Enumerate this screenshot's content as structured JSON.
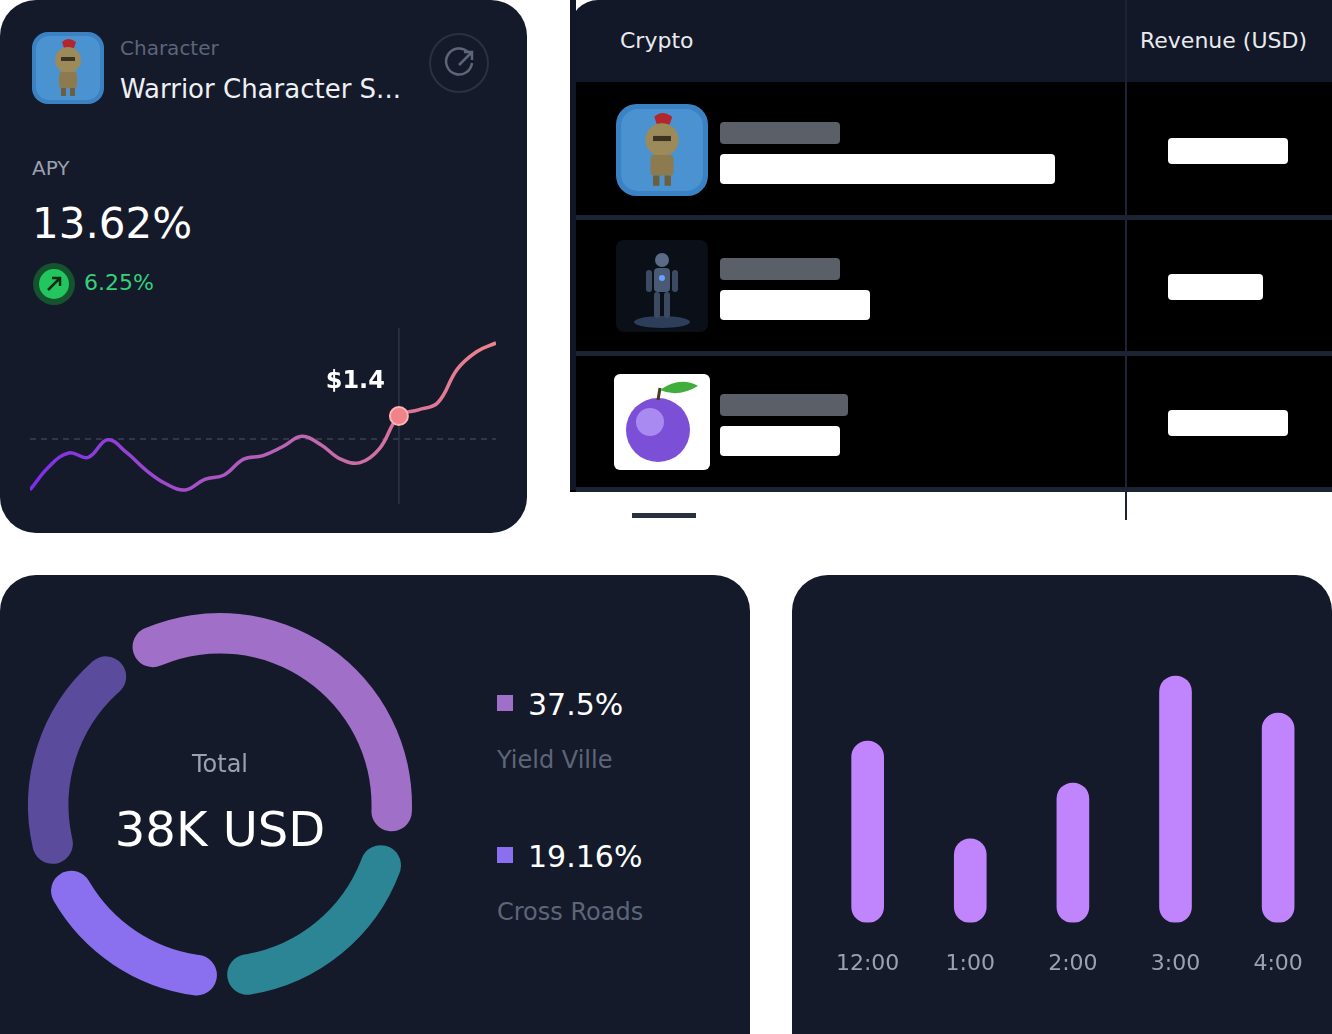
{
  "apy_card": {
    "label": "Character",
    "name": "Warrior Character S...",
    "metric": "APY",
    "value": "13.62%",
    "change": "6.25%"
  },
  "table": {
    "columns": [
      "Crypto",
      "Revenue (USD)"
    ],
    "rows": [
      [
        null,
        null
      ],
      [
        null,
        null
      ],
      [
        null,
        null
      ]
    ]
  },
  "chart_data": [
    {
      "type": "line",
      "categories": [
        null,
        null,
        null,
        null,
        null,
        null,
        null,
        null,
        null,
        null,
        null,
        null,
        null,
        null,
        null,
        null,
        null,
        null,
        null,
        null,
        null,
        null,
        null,
        null,
        null
      ],
      "values": [
        0.98,
        1.115,
        1.19,
        1.165,
        1.265,
        1.19,
        1.09,
        1.015,
        0.98,
        1.04,
        1.065,
        1.155,
        1.175,
        1.225,
        1.285,
        1.235,
        1.155,
        1.135,
        1.215,
        1.4,
        1.435,
        1.475,
        1.665,
        1.765,
        1.815
      ],
      "color": "#f0828a",
      "ylim": [
        0.9,
        1.9
      ],
      "yticks": [],
      "tick_labels": false,
      "grid": false,
      "reference_line": 1.27,
      "annotations": [
        {
          "text": "$1.4",
          "y": 1.4
        }
      ]
    },
    {
      "type": "doughnut",
      "title": "Total",
      "subtitle": "38K USD",
      "categories": [
        "Yield Ville",
        null,
        "Cross Roads",
        null
      ],
      "values": [
        37.5,
        21.5,
        19.16,
        21.84
      ],
      "value_labels": [
        "37.5%",
        null,
        "19.16%",
        null
      ],
      "colors": [
        "#a06fc8",
        "#2b8595",
        "#8a70ee",
        "#5a4b9c"
      ],
      "legend": "right"
    },
    {
      "type": "bar",
      "categories": [
        "12:00",
        "1:00",
        "2:00",
        "3:00",
        "4:00"
      ],
      "values": [
        195,
        90,
        150,
        265,
        225
      ],
      "color": "#c084fc",
      "ylim": [
        0,
        280
      ],
      "yticks": [],
      "tick_labels": "x",
      "grid": false
    }
  ]
}
